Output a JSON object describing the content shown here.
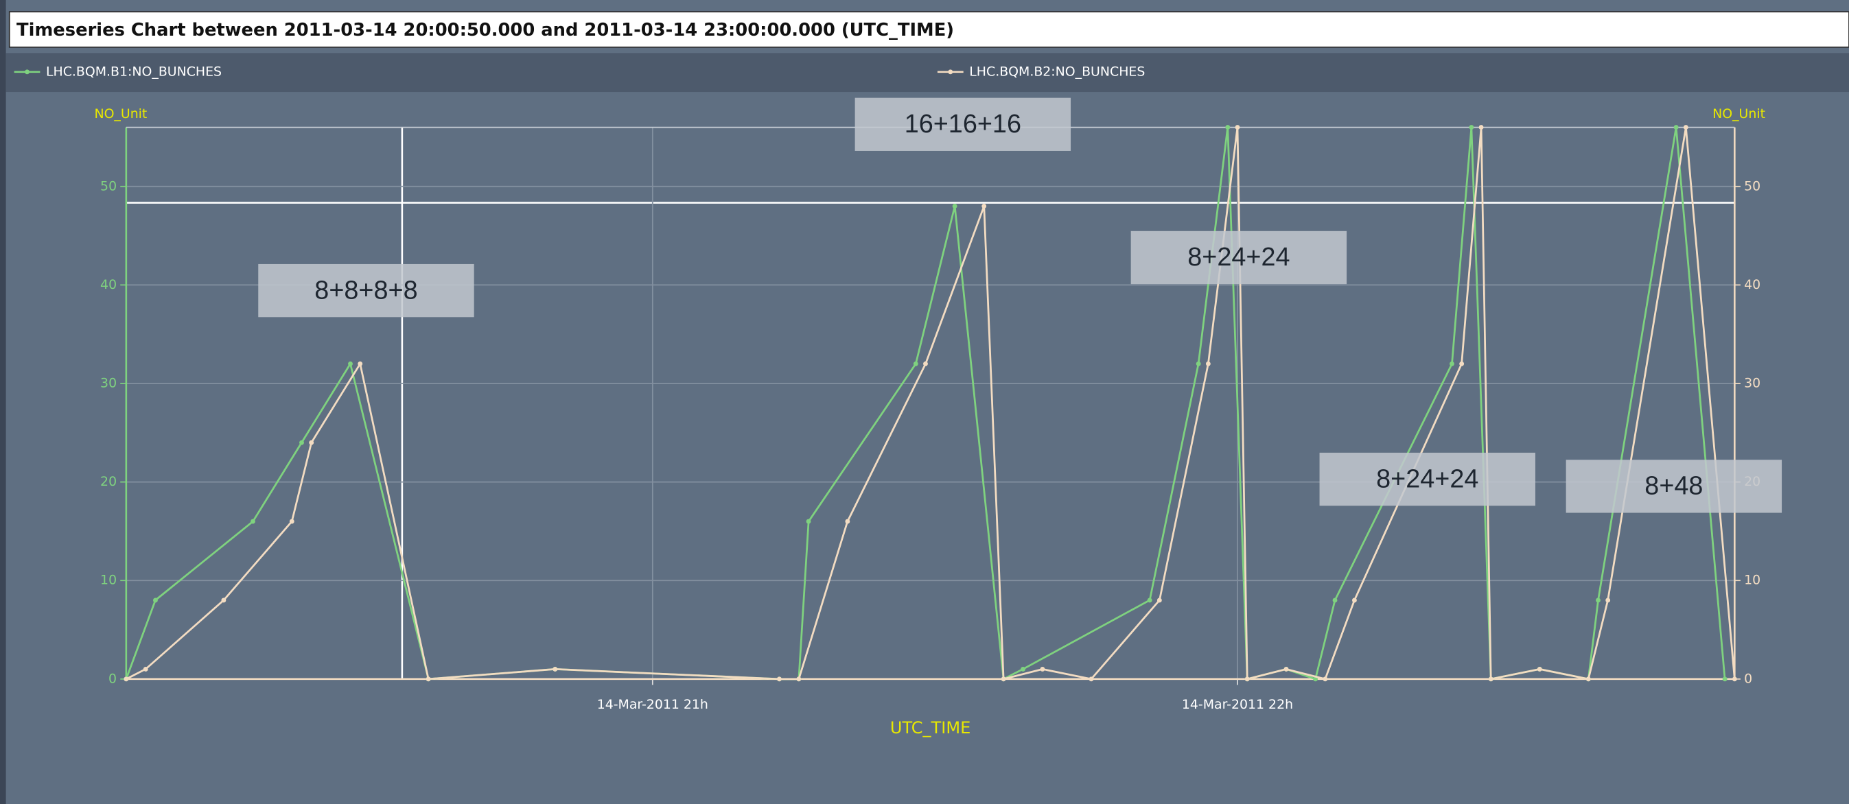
{
  "chart_data": {
    "type": "line",
    "title": "Timeseries Chart between 2011-03-14 20:00:50.000 and 2011-03-14 23:00:00.000 (UTC_TIME)",
    "x_label": "UTC_TIME",
    "y_label": "NO_Unit",
    "y2_label": "NO_Unit",
    "xlim": [
      "2011-03-14 20:06",
      "2011-03-14 22:51"
    ],
    "xticks": [
      {
        "value": "2011-03-14 21:00",
        "label": "14-Mar-2011 21h"
      },
      {
        "value": "2011-03-14 22:00",
        "label": "14-Mar-2011 22h"
      }
    ],
    "ylim": [
      0,
      56
    ],
    "yticks": [
      0,
      10,
      20,
      30,
      40,
      50
    ],
    "y2lim": [
      0,
      56
    ],
    "y2ticks": [
      0,
      10,
      20,
      30,
      40,
      50
    ],
    "grid": true,
    "series": [
      {
        "name": "LHC.BQM.B1:NO_BUNCHES",
        "color": "#7fd27f",
        "x": [
          "2011-03-14 20:06",
          "2011-03-14 20:09",
          "2011-03-14 20:19",
          "2011-03-14 20:24",
          "2011-03-14 20:29",
          "2011-03-14 20:37",
          "2011-03-14 20:50",
          "2011-03-14 21:13",
          "2011-03-14 21:15",
          "2011-03-14 21:16",
          "2011-03-14 21:27",
          "2011-03-14 21:31",
          "2011-03-14 21:36",
          "2011-03-14 21:38",
          "2011-03-14 21:51",
          "2011-03-14 21:56",
          "2011-03-14 21:59",
          "2011-03-14 22:01",
          "2011-03-14 22:05",
          "2011-03-14 22:08",
          "2011-03-14 22:10",
          "2011-03-14 22:22",
          "2011-03-14 22:24",
          "2011-03-14 22:26",
          "2011-03-14 22:31",
          "2011-03-14 22:36",
          "2011-03-14 22:37",
          "2011-03-14 22:45",
          "2011-03-14 22:50"
        ],
        "values": [
          0,
          8,
          16,
          24,
          32,
          0,
          1,
          0,
          0,
          16,
          32,
          48,
          0,
          1,
          8,
          32,
          56,
          0,
          1,
          0,
          8,
          32,
          56,
          0,
          1,
          0,
          8,
          56,
          0
        ]
      },
      {
        "name": "LHC.BQM.B2:NO_BUNCHES",
        "color": "#f3dcc2",
        "x": [
          "2011-03-14 20:06",
          "2011-03-14 20:08",
          "2011-03-14 20:16",
          "2011-03-14 20:23",
          "2011-03-14 20:25",
          "2011-03-14 20:30",
          "2011-03-14 20:37",
          "2011-03-14 20:50",
          "2011-03-14 21:13",
          "2011-03-14 21:15",
          "2011-03-14 21:20",
          "2011-03-14 21:28",
          "2011-03-14 21:34",
          "2011-03-14 21:36",
          "2011-03-14 21:40",
          "2011-03-14 21:45",
          "2011-03-14 21:52",
          "2011-03-14 21:57",
          "2011-03-14 22:00",
          "2011-03-14 22:01",
          "2011-03-14 22:05",
          "2011-03-14 22:09",
          "2011-03-14 22:12",
          "2011-03-14 22:23",
          "2011-03-14 22:25",
          "2011-03-14 22:26",
          "2011-03-14 22:31",
          "2011-03-14 22:36",
          "2011-03-14 22:38",
          "2011-03-14 22:46",
          "2011-03-14 22:51"
        ],
        "values": [
          0,
          1,
          8,
          16,
          24,
          32,
          0,
          1,
          0,
          0,
          16,
          32,
          48,
          0,
          1,
          0,
          8,
          32,
          56,
          0,
          1,
          0,
          8,
          32,
          56,
          0,
          1,
          0,
          8,
          56,
          0
        ]
      }
    ],
    "annotations": [
      "8+8+8+8",
      "16+16+16",
      "8+24+24",
      "8+24+24",
      "8+48"
    ]
  }
}
